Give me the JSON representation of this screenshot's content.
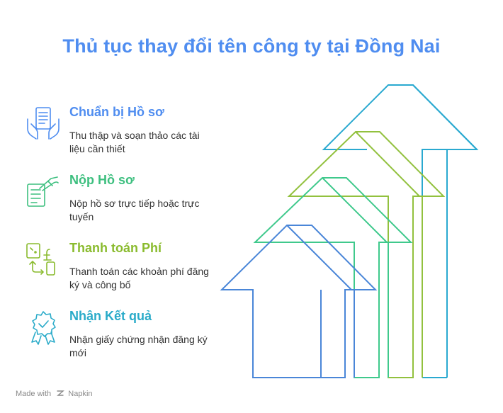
{
  "title": "Thủ tục thay đổi tên công ty tại Đồng Nai",
  "colors": {
    "title": "#4f8df0",
    "step1": "#4f8df0",
    "step2": "#3dbf7f",
    "step3": "#8abb2e",
    "step4": "#2aabc9",
    "arrow1": "#4a86d8",
    "arrow2": "#3fc98c",
    "arrow3": "#92c13e",
    "arrow4": "#2aa9d0"
  },
  "steps": [
    {
      "heading": "Chuẩn bị Hồ sơ",
      "description": "Thu thập và soạn thảo các tài liệu cần thiết",
      "icon": "document-hands-icon"
    },
    {
      "heading": "Nộp Hồ sơ",
      "description": "Nộp hồ sơ trực tiếp hoặc trực tuyến",
      "icon": "document-submit-icon"
    },
    {
      "heading": "Thanh toán Phí",
      "description": "Thanh toán các khoản phí đăng ký và công bố",
      "icon": "payment-exchange-icon"
    },
    {
      "heading": "Nhận Kết quả",
      "description": "Nhận giấy chứng nhận đăng ký mới",
      "icon": "certificate-badge-icon"
    }
  ],
  "footer": {
    "made_with": "Made with",
    "brand": "Napkin"
  }
}
